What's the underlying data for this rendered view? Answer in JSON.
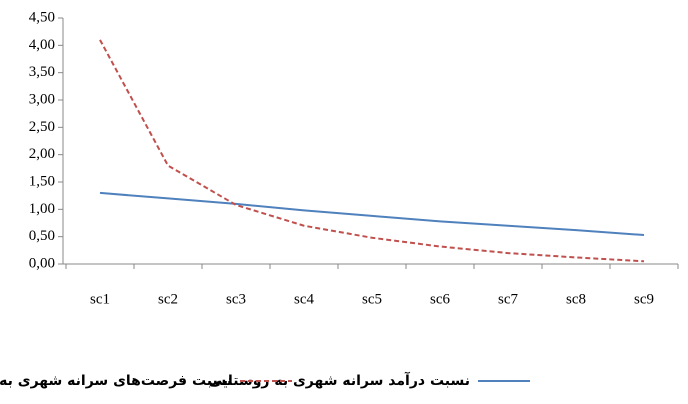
{
  "chart_data": {
    "type": "line",
    "categories": [
      "sc1",
      "sc2",
      "sc3",
      "sc4",
      "sc5",
      "sc6",
      "sc7",
      "sc8",
      "sc9"
    ],
    "series": [
      {
        "name": "نسبت درآمد سرانه شهری به روستایی",
        "color": "#4f81bd",
        "dash": false,
        "values": [
          1.3,
          1.2,
          1.1,
          0.98,
          0.88,
          0.78,
          0.7,
          0.62,
          0.53
        ]
      },
      {
        "name": "نسبت فرصت‌های سرانه شهری به روستایی",
        "color": "#c0504d",
        "dash": true,
        "values": [
          4.1,
          1.8,
          1.08,
          0.7,
          0.48,
          0.32,
          0.2,
          0.12,
          0.05
        ]
      }
    ],
    "ylim": [
      0,
      4.5
    ],
    "yticks": [
      {
        "value": 0,
        "label": "0,00"
      },
      {
        "value": 0.5,
        "label": "0,50"
      },
      {
        "value": 1,
        "label": "1,00"
      },
      {
        "value": 1.5,
        "label": "1,50"
      },
      {
        "value": 2,
        "label": "2,00"
      },
      {
        "value": 2.5,
        "label": "2,50"
      },
      {
        "value": 3,
        "label": "3,00"
      },
      {
        "value": 3.5,
        "label": "3,50"
      },
      {
        "value": 4,
        "label": "4,00"
      },
      {
        "value": 4.5,
        "label": "4,50"
      }
    ],
    "grid": false,
    "legend": "bottom"
  }
}
